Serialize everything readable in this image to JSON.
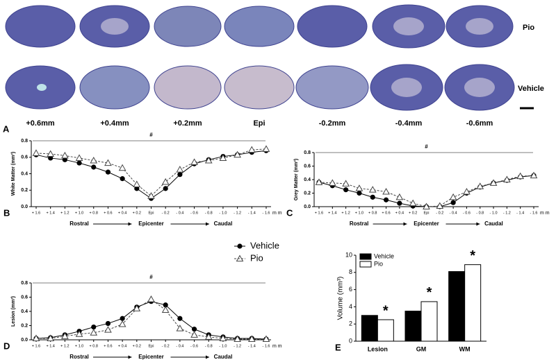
{
  "panel_a": {
    "label": "A",
    "rows": [
      "Pio",
      "Vehicle"
    ],
    "positions": [
      "+0.6mm",
      "+0.4mm",
      "+0.2mm",
      "Epi",
      "-0.2mm",
      "-0.4mm",
      "-0.6mm"
    ]
  },
  "chart_data": [
    {
      "type": "line",
      "panel": "B",
      "ylabel": "White Matter (mm²)",
      "annotation": "#",
      "x_unit": "m m",
      "direction_labels": [
        "Rostral",
        "Epicenter",
        "Caudal"
      ],
      "categories": [
        "+ 1.6",
        "+ 1.4",
        "+ 1.2",
        "+ 1.0",
        "+ 0.8",
        "+ 0.6",
        "+ 0.4",
        "+ 0.2",
        "Epi",
        "- 0.2",
        "- 0.4",
        "- 0.6",
        "- 0.8",
        "- 1.0",
        "- 1.2",
        "- 1.4",
        "- 1.6"
      ],
      "ylim": [
        0,
        0.8
      ],
      "yticks": [
        {
          "value": 0,
          "label": "0.0"
        },
        0.2,
        0.4,
        0.6,
        0.8
      ],
      "series": [
        {
          "marker": "circle",
          "color": "#000000",
          "values": [
            0.63,
            0.59,
            0.57,
            0.53,
            0.48,
            0.42,
            0.34,
            0.22,
            0.1,
            0.22,
            0.39,
            0.52,
            0.57,
            0.61,
            0.63,
            0.66,
            0.68
          ]
        },
        {
          "marker": "triangle",
          "color": "#444444",
          "dashed": true,
          "values": [
            0.65,
            0.64,
            0.62,
            0.59,
            0.56,
            0.53,
            0.47,
            0.27,
            0.13,
            0.3,
            0.45,
            0.54,
            0.56,
            0.59,
            0.63,
            0.69,
            0.7
          ]
        }
      ]
    },
    {
      "type": "line",
      "panel": "C",
      "ylabel": "Grey Matter (mm²)",
      "annotation": "#",
      "x_unit": "m m",
      "direction_labels": [
        "Rostral",
        "Epicenter",
        "Caudal"
      ],
      "categories": [
        "+ 1.6",
        "+ 1.4",
        "+ 1.2",
        "+ 1.0",
        "+ 0.8",
        "+ 0.6",
        "+ 0.4",
        "+ 0.2",
        "Epi",
        "- 0.2",
        "- 0.4",
        "- 0.6",
        "- 0.8",
        "- 1.0",
        "- 1.2",
        "- 1.4",
        "- 1.6"
      ],
      "ylim": [
        0,
        0.8
      ],
      "yticks": [
        {
          "value": 0,
          "label": "0.0"
        },
        0.2,
        0.4,
        0.6,
        0.8
      ],
      "series": [
        {
          "marker": "circle",
          "color": "#000000",
          "values": [
            0.36,
            0.31,
            0.25,
            0.2,
            0.14,
            0.1,
            0.05,
            0.01,
            0.0,
            0.0,
            0.06,
            0.2,
            0.29,
            0.35,
            0.39,
            0.44,
            0.46
          ]
        },
        {
          "marker": "triangle",
          "color": "#444444",
          "dashed": true,
          "values": [
            0.36,
            0.35,
            0.34,
            0.27,
            0.25,
            0.22,
            0.14,
            0.05,
            0.0,
            0.01,
            0.14,
            0.22,
            0.3,
            0.35,
            0.4,
            0.45,
            0.46
          ]
        }
      ]
    },
    {
      "type": "line",
      "panel": "D",
      "ylabel": "Lesion (mm²)",
      "annotation": "#",
      "x_unit": "m m",
      "direction_labels": [
        "Rostral",
        "Epicenter",
        "Caudal"
      ],
      "categories": [
        "+ 1.6",
        "+ 1.4",
        "+ 1.2",
        "+ 1.0",
        "+ 0.8",
        "+ 0.6",
        "+ 0.4",
        "+ 0.2",
        "Epi",
        "- 0.2",
        "- 0.4",
        "- 0.6",
        "- 0.8",
        "- 1.0",
        "- 1.2",
        "- 1.4",
        "- 1.6"
      ],
      "ylim": [
        0,
        0.8
      ],
      "yticks": [
        {
          "value": 0,
          "label": "0.0"
        },
        0.2,
        0.4,
        0.6,
        0.8
      ],
      "series": [
        {
          "name": "Vehicle",
          "marker": "circle",
          "color": "#000000",
          "values": [
            0.02,
            0.03,
            0.07,
            0.12,
            0.18,
            0.23,
            0.3,
            0.46,
            0.54,
            0.49,
            0.3,
            0.15,
            0.07,
            0.04,
            0.02,
            0.02,
            0.01
          ]
        },
        {
          "name": "Pio",
          "marker": "triangle",
          "color": "#444444",
          "dashed": true,
          "values": [
            0.02,
            0.02,
            0.05,
            0.08,
            0.1,
            0.14,
            0.22,
            0.44,
            0.57,
            0.42,
            0.16,
            0.07,
            0.04,
            0.02,
            0.01,
            0.01,
            0.01
          ]
        }
      ]
    },
    {
      "type": "bar",
      "panel": "E",
      "ylabel": "Volume (mm³)",
      "annotation": "*",
      "categories": [
        "Lesion",
        "GM",
        "WM"
      ],
      "ylim": [
        0,
        10
      ],
      "yticks": [
        0,
        2,
        4,
        6,
        8,
        10
      ],
      "series": [
        {
          "name": "Vehicle",
          "color": "#000000",
          "values": [
            3.0,
            3.5,
            8.1
          ]
        },
        {
          "name": "Pio",
          "color": "#ffffff",
          "values": [
            2.5,
            4.6,
            8.9
          ]
        }
      ]
    }
  ]
}
